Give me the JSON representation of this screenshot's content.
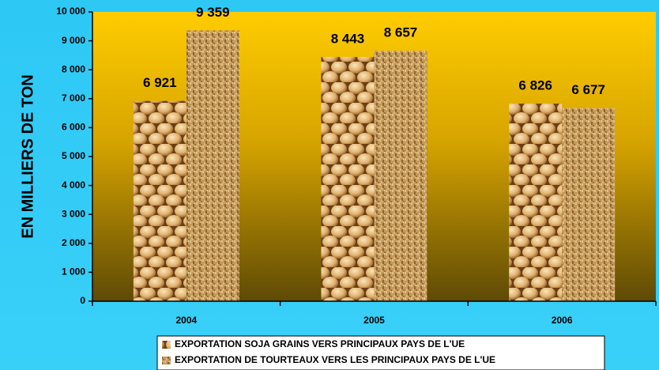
{
  "chart_data": {
    "type": "bar",
    "ylabel": "EN MILLIERS DE TON",
    "categories": [
      "2004",
      "2005",
      "2006"
    ],
    "series": [
      {
        "name": "EXPORTATION SOJA GRAINS VERS PRINCIPAUX PAYS DE L'UE",
        "color": "#d9aa66",
        "values": [
          6921,
          8443,
          6826
        ],
        "value_labels": [
          "6 921",
          "8 443",
          "6 826"
        ]
      },
      {
        "name": "EXPORTATION DE TOURTEAUX VERS LES PRINCIPAUX PAYS DE L'UE",
        "color": "#c49a5c",
        "values": [
          9359,
          8657,
          6677
        ],
        "value_labels": [
          "9 359",
          "8 657",
          "6 677"
        ]
      }
    ],
    "ylim": [
      0,
      10000
    ],
    "yticks": [
      0,
      {
        "value": 1000,
        "label": "1 000"
      },
      {
        "value": 2000,
        "label": "2 000"
      },
      {
        "value": 3000,
        "label": "3 000"
      },
      {
        "value": 4000,
        "label": "4 000"
      },
      {
        "value": 5000,
        "label": "5 000"
      },
      {
        "value": 6000,
        "label": "6 000"
      },
      {
        "value": 7000,
        "label": "7 000"
      },
      {
        "value": 8000,
        "label": "8 000"
      },
      {
        "value": 9000,
        "label": "9 000"
      },
      {
        "value": 10000,
        "label": "10 000"
      }
    ],
    "legend": "bottom"
  }
}
